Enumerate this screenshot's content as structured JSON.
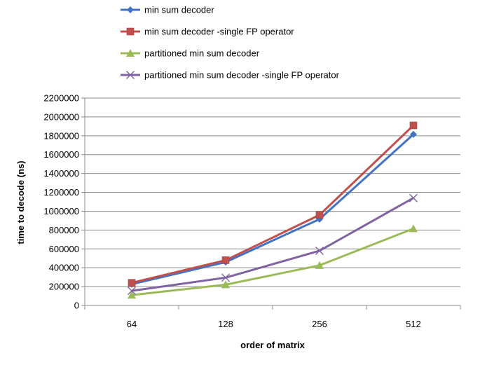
{
  "chart_data": {
    "type": "line",
    "title": "",
    "xlabel": "order of matrix",
    "ylabel": "time to decode (ns)",
    "categories": [
      "64",
      "128",
      "256",
      "512"
    ],
    "ylim": [
      0,
      2200000
    ],
    "ytick_step": 200000,
    "yticks": [
      "0",
      "200000",
      "400000",
      "600000",
      "800000",
      "1000000",
      "1200000",
      "1400000",
      "1600000",
      "1800000",
      "2000000",
      "2200000"
    ],
    "grid": "horizontal",
    "legend_position": "top",
    "series": [
      {
        "name": "min sum decoder",
        "color": "#4472C4",
        "marker": "diamond",
        "values": [
          225000,
          460000,
          915000,
          1815000
        ]
      },
      {
        "name": "min sum decoder -single FP operator",
        "color": "#C0504D",
        "marker": "square",
        "values": [
          240000,
          480000,
          960000,
          1910000
        ]
      },
      {
        "name": "partitioned min sum decoder",
        "color": "#9BBB59",
        "marker": "triangle",
        "values": [
          110000,
          220000,
          425000,
          815000
        ]
      },
      {
        "name": "partitioned min sum decoder -single FP operator",
        "color": "#8064A2",
        "marker": "x",
        "values": [
          155000,
          295000,
          580000,
          1140000
        ]
      }
    ]
  }
}
